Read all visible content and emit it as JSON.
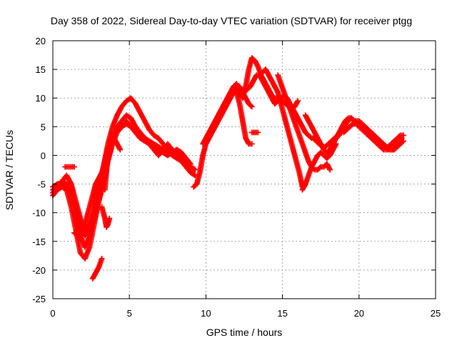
{
  "chart_data": {
    "type": "scatter",
    "title": "Day 358 of 2022, Sidereal Day-to-day VTEC variation (SDTVAR) for receiver ptgg",
    "xlabel": "GPS time / hours",
    "ylabel": "SDTVAR / TECUs",
    "xlim": [
      0,
      25
    ],
    "ylim": [
      -25,
      20
    ],
    "xticks": [
      0,
      5,
      10,
      15,
      20,
      25
    ],
    "yticks": [
      -25,
      -20,
      -15,
      -10,
      -5,
      0,
      5,
      10,
      15,
      20
    ],
    "grid": true,
    "marker": "plus",
    "color": "#ff0000",
    "series": [
      {
        "x": [
          0.0,
          0.3,
          0.6,
          0.9,
          1.2,
          1.5,
          1.8,
          2.1,
          2.4,
          2.7,
          3.0,
          3.3,
          3.6,
          3.9,
          4.2,
          4.5,
          4.8,
          5.1,
          5.4,
          5.7,
          6.0,
          6.3,
          6.6,
          6.9,
          7.2,
          7.5,
          7.8,
          8.1,
          8.4,
          8.7,
          9.0,
          9.3
        ],
        "y": [
          -6.5,
          -5.5,
          -4.5,
          -3.5,
          -5.0,
          -8.0,
          -11.0,
          -13.0,
          -12.0,
          -9.0,
          -5.0,
          -2.0,
          1.0,
          3.0,
          5.0,
          6.0,
          7.0,
          6.5,
          5.0,
          4.0,
          3.0,
          2.0,
          1.0,
          0.0,
          1.0,
          2.0,
          1.0,
          0.0,
          -1.0,
          -2.0,
          -3.0,
          -3.5
        ]
      },
      {
        "x": [
          0.0,
          0.3,
          0.6,
          0.9,
          1.2,
          1.5,
          1.8,
          2.1,
          2.4,
          2.7,
          3.0,
          3.3,
          3.6,
          3.9,
          4.2,
          4.5,
          4.8,
          5.1,
          5.4,
          5.7,
          6.0,
          6.3,
          6.6,
          6.9,
          7.2,
          7.5,
          7.8,
          8.1,
          8.4,
          8.7,
          9.0
        ],
        "y": [
          -5.5,
          -5.0,
          -4.8,
          -5.0,
          -7.0,
          -10.0,
          -14.0,
          -16.0,
          -14.0,
          -10.0,
          -6.0,
          -2.0,
          2.0,
          5.0,
          7.0,
          8.5,
          9.5,
          10.0,
          9.0,
          7.5,
          6.0,
          4.5,
          3.5,
          3.0,
          2.0,
          1.0,
          0.0,
          -0.5,
          -1.0,
          -2.0,
          -2.5
        ]
      },
      {
        "x": [
          0.0,
          0.3,
          0.6,
          0.9,
          1.2,
          1.5,
          1.8,
          2.1,
          2.4,
          2.7,
          3.0,
          3.3,
          3.6,
          3.9,
          4.2,
          4.5,
          4.8,
          5.1,
          5.4,
          5.7,
          6.0,
          6.3,
          6.6,
          6.9,
          7.2,
          7.5,
          7.8,
          8.1,
          8.4,
          8.7,
          9.0,
          9.3
        ],
        "y": [
          -7.0,
          -6.0,
          -5.5,
          -6.0,
          -9.0,
          -13.0,
          -17.0,
          -18.0,
          -16.0,
          -12.0,
          -8.0,
          -4.0,
          0.0,
          3.0,
          5.0,
          6.0,
          6.0,
          5.0,
          4.0,
          3.5,
          3.0,
          2.5,
          2.0,
          1.5,
          1.0,
          0.5,
          0.5,
          1.0,
          0.0,
          -1.0,
          -2.0,
          -2.5
        ]
      },
      {
        "x": [
          0.0,
          0.3,
          0.6,
          0.9,
          1.2,
          1.5,
          1.8,
          2.1,
          2.4,
          2.7,
          3.0,
          3.3,
          3.6,
          3.9,
          4.2,
          4.5,
          4.8,
          5.1,
          5.4,
          5.7,
          6.0,
          6.3,
          6.6,
          6.9,
          7.2,
          7.5,
          7.8,
          8.1,
          8.4,
          8.7,
          9.0
        ],
        "y": [
          -6.0,
          -5.5,
          -5.2,
          -5.0,
          -6.0,
          -9.0,
          -12.0,
          -14.0,
          -13.0,
          -11.0,
          -8.0,
          -5.0,
          -1.0,
          2.0,
          4.0,
          5.0,
          5.5,
          5.0,
          4.0,
          3.0,
          2.5,
          2.0,
          1.5,
          1.0,
          0.5,
          0.0,
          0.5,
          1.0,
          0.5,
          -0.5,
          -1.5
        ]
      },
      {
        "x": [
          0.8,
          1.0,
          1.2,
          1.4
        ],
        "y": [
          -2.0,
          -2.0,
          -2.0,
          -2.0
        ]
      },
      {
        "x": [
          1.4,
          1.6,
          1.8,
          2.0,
          2.2,
          2.4,
          2.6,
          2.8,
          3.0,
          3.2
        ],
        "y": [
          -13.5,
          -14.0,
          -14.5,
          -13.0,
          -11.0,
          -9.0,
          -7.0,
          -5.0,
          -4.0,
          -3.0
        ]
      },
      {
        "x": [
          2.6,
          2.8,
          3.0,
          3.2
        ],
        "y": [
          -21.5,
          -20.5,
          -19.5,
          -18.0
        ]
      },
      {
        "x": [
          3.2,
          3.3,
          3.4,
          3.5,
          3.6,
          3.7
        ],
        "y": [
          -9.0,
          -10.0,
          -11.0,
          -12.5,
          -12.0,
          -11.0
        ]
      },
      {
        "x": [
          3.4,
          3.5,
          3.6,
          3.8,
          4.0,
          4.2,
          4.4
        ],
        "y": [
          -6.0,
          -3.0,
          0.0,
          2.0,
          3.0,
          2.0,
          1.0
        ]
      },
      {
        "x": [
          9.2,
          9.4,
          9.6,
          9.8,
          10.0,
          10.2,
          10.4,
          10.6,
          10.8,
          11.0,
          11.2,
          11.4,
          11.6,
          11.8,
          12.0,
          12.2,
          12.4,
          12.6,
          12.8,
          13.0
        ],
        "y": [
          -5.5,
          -5.0,
          -3.0,
          0.0,
          2.0,
          3.0,
          4.0,
          5.0,
          6.0,
          7.0,
          8.0,
          9.0,
          10.0,
          11.0,
          12.0,
          12.0,
          11.0,
          10.0,
          9.0,
          8.5
        ]
      },
      {
        "x": [
          9.8,
          10.0,
          10.2,
          10.4,
          10.6,
          10.8,
          11.0,
          11.2,
          11.4,
          11.6,
          11.8,
          12.0,
          12.2,
          12.4,
          12.6,
          12.8,
          13.0,
          13.2,
          13.4,
          13.6,
          13.8,
          14.0,
          14.2,
          14.4,
          14.6,
          14.8,
          15.0,
          15.2,
          15.4,
          15.6,
          15.8,
          16.0
        ],
        "y": [
          2.0,
          3.0,
          4.0,
          5.0,
          6.0,
          7.0,
          8.0,
          9.0,
          10.0,
          11.0,
          12.0,
          12.5,
          11.0,
          10.0,
          12.0,
          15.0,
          17.0,
          16.5,
          15.5,
          14.0,
          13.0,
          12.0,
          11.0,
          10.0,
          10.0,
          10.0,
          9.5,
          9.0,
          8.5,
          8.0,
          8.5,
          9.5
        ]
      },
      {
        "x": [
          12.3,
          12.5,
          12.7,
          12.9,
          13.1,
          13.3,
          13.5,
          13.7,
          13.9,
          14.1,
          14.3,
          14.5,
          14.7,
          14.9,
          15.1,
          15.3,
          15.5,
          15.7,
          15.9,
          16.1,
          16.3,
          16.5,
          16.7,
          16.9
        ],
        "y": [
          11.0,
          11.5,
          11.5,
          12.0,
          13.0,
          14.0,
          14.0,
          13.0,
          12.0,
          11.0,
          10.0,
          9.0,
          9.5,
          10.0,
          10.5,
          10.0,
          9.0,
          8.0,
          7.0,
          6.0,
          5.0,
          4.0,
          3.5,
          3.0
        ]
      },
      {
        "x": [
          12.0,
          12.2,
          12.4,
          12.6,
          12.8,
          13.0
        ],
        "y": [
          11.0,
          9.0,
          6.0,
          3.0,
          2.0,
          2.0
        ]
      },
      {
        "x": [
          13.0,
          13.2,
          13.4
        ],
        "y": [
          4.0,
          4.0,
          4.0
        ]
      },
      {
        "x": [
          13.5,
          13.7,
          13.9,
          14.1,
          14.3,
          14.5,
          14.7,
          14.9,
          15.1,
          15.3,
          15.5,
          15.7,
          15.9,
          16.1,
          16.3
        ],
        "y": [
          14.0,
          14.5,
          15.0,
          14.0,
          13.0,
          12.0,
          11.0,
          9.0,
          7.0,
          5.0,
          3.0,
          1.0,
          -1.0,
          -3.0,
          -5.5
        ]
      },
      {
        "x": [
          14.7,
          14.9,
          15.1,
          15.3,
          15.5,
          15.7,
          15.9,
          16.1,
          16.3,
          16.5,
          16.7,
          16.9,
          17.1,
          17.3,
          17.5,
          17.7,
          17.9,
          18.1
        ],
        "y": [
          14.0,
          12.5,
          11.0,
          9.5,
          8.0,
          6.5,
          5.0,
          3.5,
          2.0,
          0.5,
          -1.0,
          -2.0,
          -2.5,
          -2.5,
          -2.0,
          -2.0,
          -1.5,
          -2.5
        ]
      },
      {
        "x": [
          16.3,
          16.5,
          16.7,
          16.9,
          17.1,
          17.3,
          17.5,
          17.7,
          17.9,
          18.1,
          18.3,
          18.5
        ],
        "y": [
          -6.0,
          -5.0,
          -3.5,
          -2.0,
          -1.0,
          0.0,
          0.5,
          0.0,
          -0.5,
          0.0,
          1.0,
          2.0
        ]
      },
      {
        "x": [
          16.5,
          16.7,
          16.9,
          17.1,
          17.3,
          17.5,
          17.7,
          17.9,
          18.1,
          18.3,
          18.5,
          18.7,
          18.9,
          19.1,
          19.3,
          19.5,
          19.7,
          19.9,
          20.1,
          20.3,
          20.5,
          20.7,
          20.9,
          21.1,
          21.3,
          21.5,
          21.7,
          21.9,
          22.1,
          22.3,
          22.5,
          22.7,
          22.9
        ],
        "y": [
          7.0,
          6.0,
          5.0,
          4.0,
          3.0,
          2.0,
          1.0,
          0.5,
          1.0,
          2.0,
          3.0,
          4.0,
          5.0,
          6.0,
          6.5,
          6.5,
          6.0,
          5.5,
          5.0,
          4.5,
          4.0,
          3.5,
          3.0,
          2.5,
          2.0,
          1.5,
          1.5,
          1.5,
          2.0,
          2.5,
          3.0,
          3.5,
          3.5
        ]
      },
      {
        "x": [
          17.0,
          17.2,
          17.4,
          17.6,
          17.8,
          18.0,
          18.2,
          18.4,
          18.6,
          18.8,
          19.0,
          19.2,
          19.4,
          19.6,
          19.8,
          20.0,
          20.2,
          20.4,
          20.6,
          20.8,
          21.0,
          21.2,
          21.4,
          21.6,
          21.8,
          22.0,
          22.2,
          22.4,
          22.6,
          22.8
        ],
        "y": [
          3.0,
          2.5,
          2.0,
          1.5,
          1.5,
          2.0,
          2.5,
          3.0,
          3.5,
          4.0,
          4.5,
          5.0,
          5.0,
          5.5,
          5.5,
          5.0,
          4.5,
          4.0,
          3.5,
          3.0,
          2.5,
          2.0,
          1.5,
          1.0,
          1.0,
          1.5,
          2.0,
          2.5,
          3.0,
          3.0
        ]
      },
      {
        "x": [
          18.5,
          18.7,
          18.9,
          19.1,
          19.3,
          19.5,
          19.7,
          19.9,
          20.1,
          20.3,
          20.5,
          20.7,
          20.9,
          21.1,
          21.3,
          21.5,
          21.7,
          21.9,
          22.1,
          22.3,
          22.5,
          22.7,
          22.9
        ],
        "y": [
          3.0,
          3.5,
          4.5,
          5.5,
          6.0,
          6.5,
          6.0,
          5.5,
          5.0,
          5.0,
          4.5,
          4.0,
          3.5,
          3.0,
          2.5,
          2.0,
          1.5,
          1.0,
          1.0,
          1.0,
          1.5,
          2.0,
          2.5
        ]
      },
      {
        "x": [
          19.0,
          19.2,
          19.4,
          19.6,
          19.8,
          20.0,
          20.2,
          20.4,
          20.6,
          20.8,
          21.0,
          21.2,
          21.4,
          21.6,
          21.8,
          22.0,
          22.2,
          22.4,
          22.6,
          22.8
        ],
        "y": [
          4.0,
          4.5,
          5.0,
          5.5,
          6.0,
          6.0,
          5.5,
          5.0,
          4.5,
          4.0,
          3.5,
          3.0,
          2.5,
          2.0,
          1.5,
          1.0,
          1.0,
          1.5,
          2.0,
          2.5
        ]
      }
    ]
  }
}
